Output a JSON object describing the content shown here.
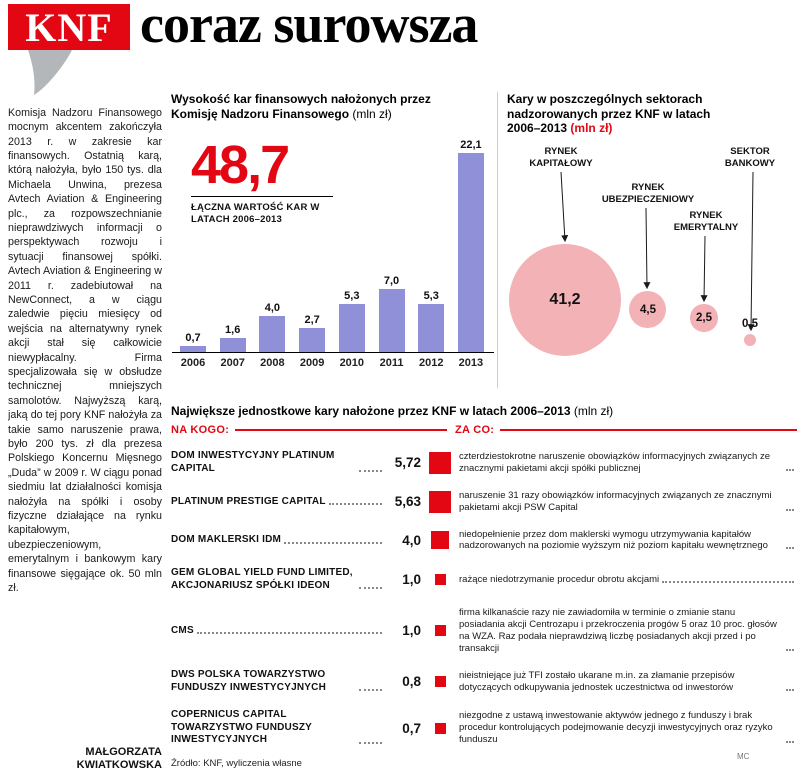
{
  "masthead": {
    "brand": "KNF",
    "headline_rest": "coraz surowsza"
  },
  "article": {
    "body": "Komisja Nadzoru Finansowego mocnym akcentem zakończyła 2013 r. w zakresie kar finansowych. Ostatnią karą, którą nałożyła, było 150 tys. dla Michaela Unwina, prezesa Avtech Aviation & Engineering plc., za rozpowszechnianie nieprawdziwych informacji o perspektywach rozwoju i sytuacji finansowej spółki. Avtech Aviation & Engineering w 2011 r. zadebiutował na NewConnect, a w ciągu zaledwie pięciu miesięcy od wejścia na alternatywny rynek akcji stał się całkowicie niewypłacalny. Firma specjalizowała się w obsłudze technicznej mniejszych samolotów. Najwyższą karą, jaką do tej pory KNF nałożyła za takie samo naruszenie prawa, było 200 tys. zł dla prezesa Polskiego Koncernu Mięsnego „Duda” w 2009 r. W ciągu ponad siedmiu lat działalności komisja nałożyła na spółki i osoby fizyczne działające na rynku kapitałowym, ubezpieczeniowym, emerytalnym i bankowym kary finansowe sięgające ok. 50 mln zł.",
    "author": "MAŁGORZATA KWIATKOWSKA"
  },
  "colors": {
    "accent_red": "#e30613",
    "bar_purple": "#8f90d8",
    "bubble_pink": "#f3b2b6"
  },
  "chart_data": [
    {
      "type": "bar",
      "title": "Wysokość kar finansowych nałożonych przez Komisję Nadzoru Finansowego",
      "title_unit": "(mln zł)",
      "total_label": "48,7",
      "total_caption": "ŁĄCZNA WARTOŚĆ KAR W LATACH 2006–2013",
      "categories": [
        "2006",
        "2007",
        "2008",
        "2009",
        "2010",
        "2011",
        "2012",
        "2013"
      ],
      "values": [
        0.7,
        1.6,
        4.0,
        2.7,
        5.3,
        7.0,
        5.3,
        22.1
      ],
      "value_labels": [
        "0,7",
        "1,6",
        "4,0",
        "2,7",
        "5,3",
        "7,0",
        "5,3",
        "22,1"
      ],
      "ylim": [
        0,
        23
      ],
      "bar_color": "#8f90d8"
    },
    {
      "type": "bubble",
      "title": "Kary w poszczególnych sektorach nadzorowanych przez KNF w latach 2006–2013",
      "title_unit": "(mln zł)",
      "bubble_color": "#f3b2b6",
      "bubbles": [
        {
          "label": "RYNEK KAPITAŁOWY",
          "value": 41.2,
          "value_label": "41,2"
        },
        {
          "label": "RYNEK UBEZPIECZENIOWY",
          "value": 4.5,
          "value_label": "4,5"
        },
        {
          "label": "RYNEK EMERYTALNY",
          "value": 2.5,
          "value_label": "2,5"
        },
        {
          "label": "SEKTOR BANKOWY",
          "value": 0.5,
          "value_label": "0,5"
        }
      ]
    },
    {
      "type": "table",
      "title": "Największe jednostkowe kary nałożone przez KNF w latach 2006–2013",
      "title_unit": "(mln zł)",
      "col_who": "NA KOGO:",
      "col_what": "ZA CO:",
      "rows": [
        {
          "who": "DOM INWESTYCYJNY PLATINUM CAPITAL",
          "value": 5.72,
          "value_label": "5,72",
          "what": "czterdziestokrotne naruszenie obowiązków informacyjnych związanych ze znacznymi pakietami akcji spółki publicznej"
        },
        {
          "who": "PLATINUM PRESTIGE CAPITAL",
          "value": 5.63,
          "value_label": "5,63",
          "what": "naruszenie 31 razy obowiązków informacyjnych związanych ze znacznymi pakietami akcji PSW Capital"
        },
        {
          "who": "DOM MAKLERSKI IDM",
          "value": 4.0,
          "value_label": "4,0",
          "what": "niedopełnienie przez dom maklerski wymogu utrzymywania kapitałów nadzorowanych na poziomie wyższym niż poziom kapitału wewnętrznego"
        },
        {
          "who": "GEM GLOBAL YIELD FUND LIMITED, AKCJONARIUSZ SPÓŁKI IDEON",
          "value": 1.0,
          "value_label": "1,0",
          "what": "rażące niedotrzymanie procedur obrotu akcjami"
        },
        {
          "who": "CMS",
          "value": 1.0,
          "value_label": "1,0",
          "what": "firma kilkanaście razy nie zawiadomiła w terminie o zmianie stanu posiadania akcji Centrozapu i przekroczenia progów 5 oraz 10 proc. głosów na WZA. Raz podała nieprawdziwą liczbę posiadanych akcji przed i po transakcji"
        },
        {
          "who": "DWS POLSKA TOWARZYSTWO FUNDUSZY INWESTYCYJNYCH",
          "value": 0.8,
          "value_label": "0,8",
          "what": "nieistniejące już TFI zostało ukarane m.in. za złamanie przepisów dotyczących odkupywania jednostek uczestnictwa od inwestorów"
        },
        {
          "who": "COPERNICUS CAPITAL TOWARZYSTWO FUNDUSZY INWESTYCYJNYCH",
          "value": 0.7,
          "value_label": "0,7",
          "what": "niezgodne z ustawą inwestowanie aktywów jednego z funduszy i brak procedur kontrolujących podejmowanie decyzji inwestycyjnych oraz ryzyko funduszu"
        }
      ]
    }
  ],
  "footer": {
    "source": "Źródło: KNF, wyliczenia własne",
    "credit": "MC"
  }
}
